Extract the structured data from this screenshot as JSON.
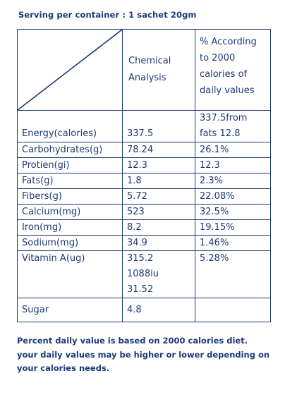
{
  "serving_text": "Serving per container : 1 sachet 20gm",
  "header": {
    "chemical_lines": [
      "Chemical",
      "Analysis"
    ],
    "percent_lines": [
      "% According",
      "to 2000",
      "calories of",
      "daily values"
    ]
  },
  "rows": [
    {
      "name": "Energy(calories)",
      "value_lines": [
        "337.5"
      ],
      "percent_lines": [
        "337.5from",
        "fats 12.8"
      ]
    },
    {
      "name": "Carbohydrates(g)",
      "value_lines": [
        "78.24"
      ],
      "percent_lines": [
        "26.1%"
      ]
    },
    {
      "name": "Protien(gi)",
      "value_lines": [
        "12.3"
      ],
      "percent_lines": [
        "12.3"
      ]
    },
    {
      "name": "Fats(g)",
      "value_lines": [
        "1.8"
      ],
      "percent_lines": [
        "2.3%"
      ]
    },
    {
      "name": "Fibers(g)",
      "value_lines": [
        "5.72"
      ],
      "percent_lines": [
        "22.08%"
      ]
    },
    {
      "name": "Calcium(mg)",
      "value_lines": [
        "523"
      ],
      "percent_lines": [
        "32.5%"
      ]
    },
    {
      "name": "Iron(mg)",
      "value_lines": [
        "8.2"
      ],
      "percent_lines": [
        "19.15%"
      ]
    },
    {
      "name": "Sodium(mg)",
      "value_lines": [
        "34.9"
      ],
      "percent_lines": [
        "1.46%"
      ]
    },
    {
      "name": "Vitamin A(ug)",
      "value_lines": [
        "315.2",
        "1088iu",
        "31.52"
      ],
      "percent_lines": [
        "5.28%"
      ]
    },
    {
      "name": "Sugar",
      "value_lines": [
        "4.8"
      ],
      "percent_lines": []
    }
  ],
  "footnote_lines": [
    "Percent daily value is based on 2000 calories diet.",
    "your daily values may be higher or lower depending on",
    "your calories needs."
  ],
  "colors": {
    "text": "#1d3a78",
    "border": "#1d3a78",
    "background": "#ffffff"
  }
}
